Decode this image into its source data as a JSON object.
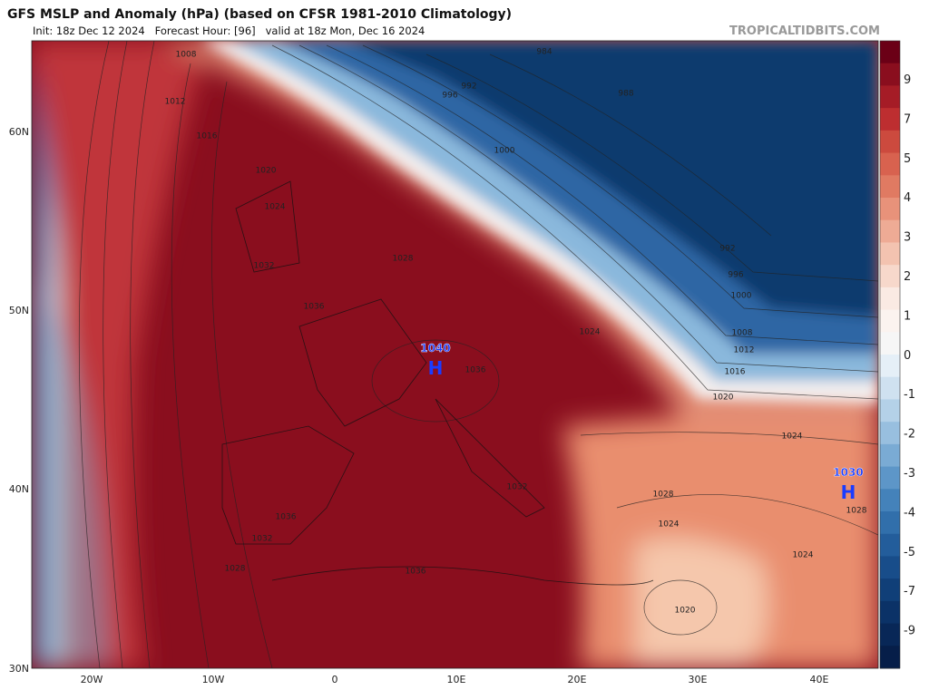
{
  "header": {
    "title": "GFS MSLP and Anomaly (hPa) (based on CFSR 1981-2010 Climatology)",
    "subtitle": "Init: 18z Dec 12 2024   Forecast Hour: [96]   valid at 18z Mon, Dec 16 2024",
    "site": "TROPICALTIDBITS.COM"
  },
  "latitude_labels": [
    "60N",
    "50N",
    "40N",
    "30N"
  ],
  "longitude_labels": [
    "20W",
    "10W",
    "0",
    "10E",
    "20E",
    "30E",
    "40E"
  ],
  "colorbar": {
    "labels": [
      "9",
      "7",
      "5",
      "4",
      "3",
      "2",
      "1",
      "0",
      "-1",
      "-2",
      "-3",
      "-4",
      "-5",
      "-7",
      "-9"
    ]
  },
  "highs": [
    {
      "value": "1040",
      "symbol": "H"
    },
    {
      "value": "1030",
      "symbol": "H"
    }
  ],
  "isobar_labels": [
    "1008",
    "1012",
    "1016",
    "1020",
    "1024",
    "1028",
    "1032",
    "1036",
    "984",
    "988",
    "992",
    "996",
    "1000",
    "992",
    "996",
    "1000",
    "1008",
    "1012",
    "1016",
    "1020",
    "1024",
    "1028",
    "1024",
    "1028",
    "1024",
    "1020",
    "1032",
    "1036",
    "1032",
    "1028",
    "1036",
    "1036",
    "1024"
  ]
}
